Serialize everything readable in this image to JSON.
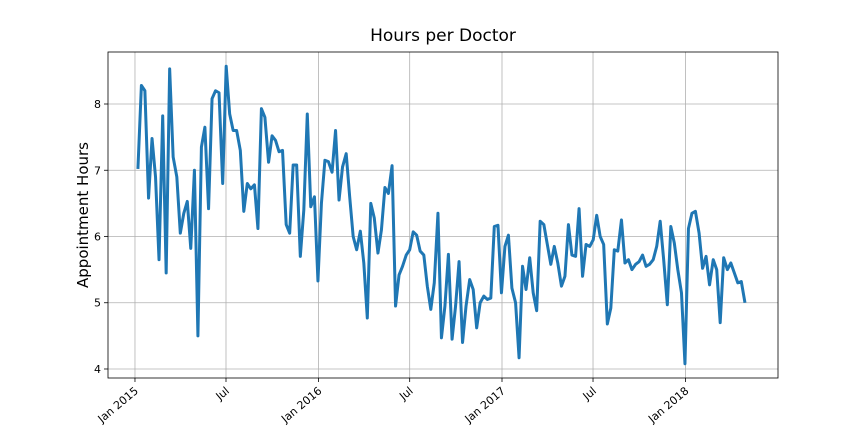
{
  "chart_data": {
    "type": "line",
    "title": "Hours per Doctor",
    "y_label": "Appointment Hours",
    "color": "#1f77b4",
    "grid": true,
    "x": [
      2015.016,
      2015.035,
      2015.054,
      2015.074,
      2015.093,
      2015.112,
      2015.131,
      2015.151,
      2015.17,
      2015.189,
      2015.208,
      2015.228,
      2015.247,
      2015.266,
      2015.285,
      2015.304,
      2015.324,
      2015.343,
      2015.362,
      2015.381,
      2015.401,
      2015.42,
      2015.439,
      2015.458,
      2015.478,
      2015.497,
      2015.516,
      2015.535,
      2015.554,
      2015.574,
      2015.593,
      2015.612,
      2015.631,
      2015.651,
      2015.67,
      2015.689,
      2015.708,
      2015.728,
      2015.747,
      2015.766,
      2015.785,
      2015.804,
      2015.824,
      2015.843,
      2015.862,
      2015.881,
      2015.901,
      2015.92,
      2015.939,
      2015.958,
      2015.978,
      2015.997,
      2016.016,
      2016.035,
      2016.054,
      2016.074,
      2016.093,
      2016.112,
      2016.131,
      2016.151,
      2016.17,
      2016.189,
      2016.208,
      2016.228,
      2016.247,
      2016.266,
      2016.285,
      2016.304,
      2016.324,
      2016.343,
      2016.362,
      2016.381,
      2016.401,
      2016.42,
      2016.439,
      2016.458,
      2016.478,
      2016.497,
      2016.516,
      2016.535,
      2016.554,
      2016.574,
      2016.593,
      2016.612,
      2016.631,
      2016.651,
      2016.67,
      2016.689,
      2016.708,
      2016.728,
      2016.747,
      2016.766,
      2016.785,
      2016.804,
      2016.824,
      2016.843,
      2016.862,
      2016.881,
      2016.901,
      2016.92,
      2016.939,
      2016.958,
      2016.978,
      2016.997,
      2017.016,
      2017.035,
      2017.054,
      2017.074,
      2017.093,
      2017.112,
      2017.131,
      2017.151,
      2017.17,
      2017.189,
      2017.208,
      2017.228,
      2017.247,
      2017.266,
      2017.285,
      2017.304,
      2017.324,
      2017.343,
      2017.362,
      2017.381,
      2017.401,
      2017.42,
      2017.439,
      2017.458,
      2017.478,
      2017.497,
      2017.516,
      2017.535,
      2017.554,
      2017.574,
      2017.593,
      2017.612,
      2017.631,
      2017.651,
      2017.67,
      2017.689,
      2017.708,
      2017.728,
      2017.747,
      2017.766,
      2017.785,
      2017.804,
      2017.824,
      2017.843,
      2017.862,
      2017.881,
      2017.901,
      2017.92,
      2017.939,
      2017.958,
      2017.978,
      2017.997,
      2018.016,
      2018.035,
      2018.054,
      2018.074,
      2018.093,
      2018.112,
      2018.131,
      2018.151,
      2018.17,
      2018.189,
      2018.208,
      2018.228,
      2018.247,
      2018.266,
      2018.285,
      2018.304,
      2018.324
    ],
    "values": [
      7.02,
      8.28,
      8.2,
      6.58,
      7.48,
      6.9,
      5.65,
      7.82,
      5.45,
      8.53,
      7.2,
      6.9,
      6.05,
      6.35,
      6.53,
      5.82,
      7.0,
      4.5,
      7.35,
      7.65,
      6.42,
      8.08,
      8.2,
      8.17,
      6.8,
      8.57,
      7.85,
      7.6,
      7.6,
      7.3,
      6.38,
      6.8,
      6.72,
      6.78,
      6.12,
      7.93,
      7.8,
      7.12,
      7.52,
      7.45,
      7.28,
      7.3,
      6.18,
      6.05,
      7.08,
      7.08,
      5.7,
      6.4,
      7.85,
      6.45,
      6.6,
      5.33,
      6.5,
      7.15,
      7.13,
      6.97,
      7.6,
      6.55,
      7.05,
      7.25,
      6.6,
      6.0,
      5.8,
      6.08,
      5.6,
      4.77,
      6.5,
      6.28,
      5.75,
      6.1,
      6.74,
      6.65,
      7.07,
      4.95,
      5.42,
      5.55,
      5.72,
      5.8,
      6.07,
      6.02,
      5.78,
      5.72,
      5.25,
      4.9,
      5.3,
      6.35,
      4.47,
      4.95,
      5.73,
      4.45,
      4.95,
      5.62,
      4.4,
      4.95,
      5.35,
      5.2,
      4.62,
      5.0,
      5.1,
      5.05,
      5.07,
      6.15,
      6.17,
      5.15,
      5.85,
      6.02,
      5.22,
      5.0,
      4.17,
      5.55,
      5.2,
      5.68,
      5.15,
      4.88,
      6.23,
      6.18,
      5.88,
      5.58,
      5.85,
      5.6,
      5.25,
      5.4,
      6.18,
      5.72,
      5.7,
      6.42,
      5.4,
      5.88,
      5.85,
      5.95,
      6.32,
      6.0,
      5.88,
      4.68,
      4.92,
      5.8,
      5.78,
      6.25,
      5.6,
      5.65,
      5.5,
      5.58,
      5.62,
      5.72,
      5.55,
      5.58,
      5.65,
      5.85,
      6.23,
      5.65,
      4.97,
      6.15,
      5.9,
      5.5,
      5.15,
      4.08,
      6.12,
      6.35,
      6.38,
      6.05,
      5.52,
      5.7,
      5.27,
      5.65,
      5.5,
      4.7,
      5.68,
      5.5,
      5.6,
      5.45,
      5.3,
      5.32,
      5.0
    ],
    "xlim": [
      2014.853,
      2018.504
    ],
    "xticks": [
      {
        "value": 2015.0,
        "label": "Jan 2015"
      },
      {
        "value": 2015.496,
        "label": "Jul"
      },
      {
        "value": 2016.0,
        "label": "Jan 2016"
      },
      {
        "value": 2016.497,
        "label": "Jul"
      },
      {
        "value": 2017.0,
        "label": "Jan 2017"
      },
      {
        "value": 2017.496,
        "label": "Jul"
      },
      {
        "value": 2018.0,
        "label": "Jan 2018"
      }
    ],
    "ylim": [
      3.864,
      8.785
    ],
    "yticks": [
      4,
      5,
      6,
      7,
      8
    ]
  }
}
